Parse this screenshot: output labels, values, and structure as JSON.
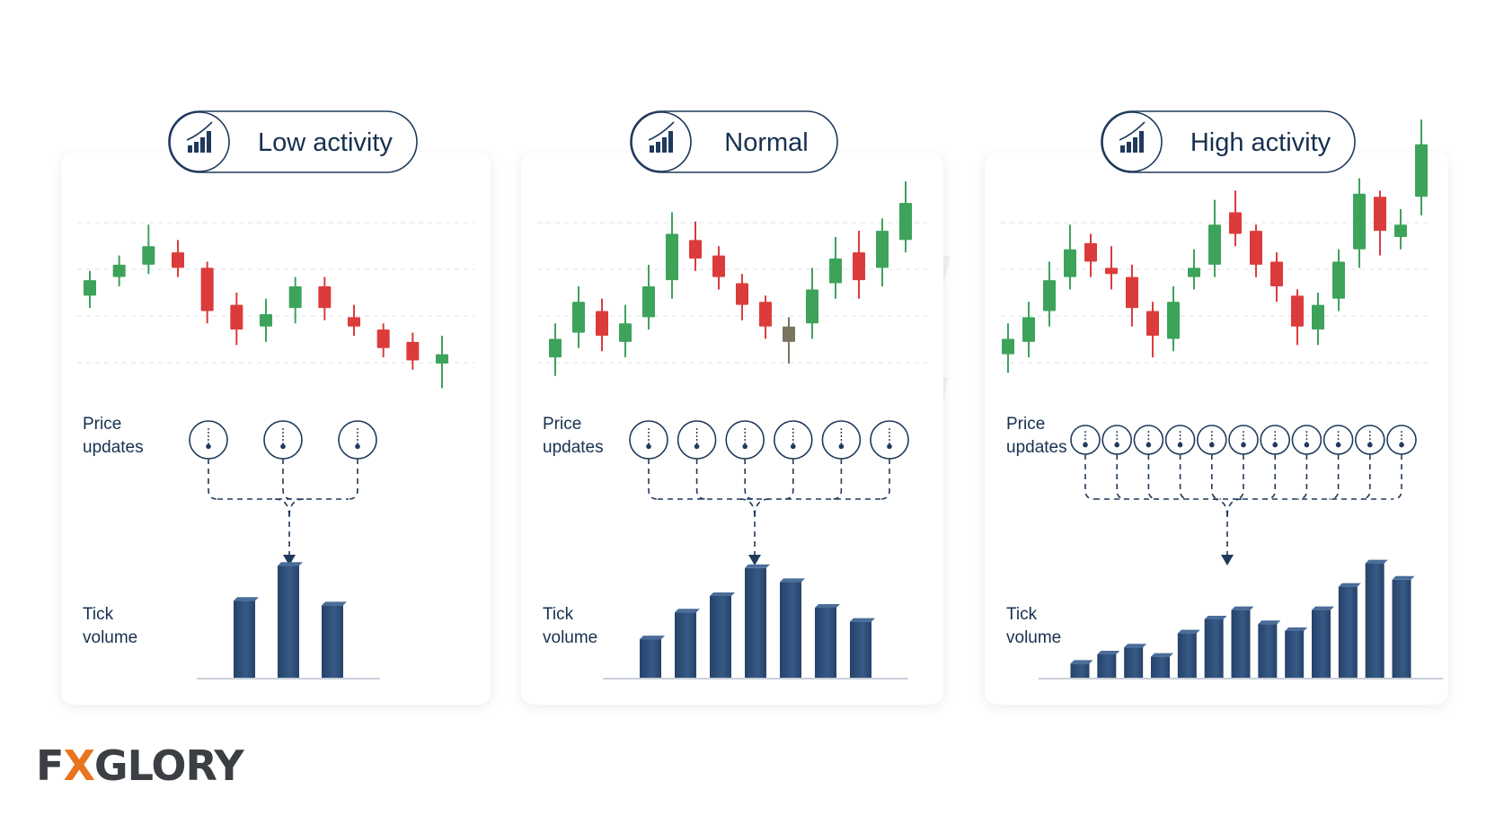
{
  "panels": [
    {
      "title": "Low activity",
      "icon": "bar-chart-icon",
      "price_label": [
        "Price",
        "updates"
      ],
      "volume_label": [
        "Tick",
        "volume"
      ],
      "price_updates": 3,
      "candles": [
        {
          "o": 0.44,
          "c": 0.54,
          "h": 0.6,
          "l": 0.36
        },
        {
          "o": 0.56,
          "c": 0.64,
          "h": 0.7,
          "l": 0.5
        },
        {
          "o": 0.64,
          "c": 0.76,
          "h": 0.9,
          "l": 0.58
        },
        {
          "o": 0.72,
          "c": 0.62,
          "h": 0.8,
          "l": 0.56
        },
        {
          "o": 0.62,
          "c": 0.34,
          "h": 0.66,
          "l": 0.26
        },
        {
          "o": 0.38,
          "c": 0.22,
          "h": 0.46,
          "l": 0.12
        },
        {
          "o": 0.24,
          "c": 0.32,
          "h": 0.42,
          "l": 0.14
        },
        {
          "o": 0.36,
          "c": 0.5,
          "h": 0.56,
          "l": 0.26
        },
        {
          "o": 0.5,
          "c": 0.36,
          "h": 0.56,
          "l": 0.28
        },
        {
          "o": 0.3,
          "c": 0.24,
          "h": 0.38,
          "l": 0.18
        },
        {
          "o": 0.22,
          "c": 0.1,
          "h": 0.26,
          "l": 0.04
        },
        {
          "o": 0.14,
          "c": 0.02,
          "h": 0.2,
          "l": -0.04
        },
        {
          "o": 0.0,
          "c": 0.06,
          "h": 0.18,
          "l": -0.16
        }
      ],
      "volume": [
        0.66,
        0.96,
        0.62
      ]
    },
    {
      "title": "Normal",
      "icon": "bar-chart-icon",
      "price_label": [
        "Price",
        "updates"
      ],
      "volume_label": [
        "Tick",
        "volume"
      ],
      "price_updates": 6,
      "candles": [
        {
          "o": 0.04,
          "c": 0.16,
          "h": 0.26,
          "l": -0.08
        },
        {
          "o": 0.2,
          "c": 0.4,
          "h": 0.5,
          "l": 0.1
        },
        {
          "o": 0.34,
          "c": 0.18,
          "h": 0.42,
          "l": 0.08
        },
        {
          "o": 0.14,
          "c": 0.26,
          "h": 0.38,
          "l": 0.04
        },
        {
          "o": 0.3,
          "c": 0.5,
          "h": 0.64,
          "l": 0.22
        },
        {
          "o": 0.54,
          "c": 0.84,
          "h": 0.98,
          "l": 0.42
        },
        {
          "o": 0.8,
          "c": 0.68,
          "h": 0.92,
          "l": 0.6
        },
        {
          "o": 0.7,
          "c": 0.56,
          "h": 0.76,
          "l": 0.48
        },
        {
          "o": 0.52,
          "c": 0.38,
          "h": 0.58,
          "l": 0.28
        },
        {
          "o": 0.4,
          "c": 0.24,
          "h": 0.44,
          "l": 0.16
        },
        {
          "o": 0.14,
          "c": 0.24,
          "h": 0.3,
          "l": 0.0,
          "neutral": true
        },
        {
          "o": 0.26,
          "c": 0.48,
          "h": 0.62,
          "l": 0.16
        },
        {
          "o": 0.52,
          "c": 0.68,
          "h": 0.82,
          "l": 0.42
        },
        {
          "o": 0.72,
          "c": 0.54,
          "h": 0.86,
          "l": 0.42
        },
        {
          "o": 0.62,
          "c": 0.86,
          "h": 0.94,
          "l": 0.5
        },
        {
          "o": 0.8,
          "c": 1.04,
          "h": 1.18,
          "l": 0.72
        }
      ],
      "volume": [
        0.33,
        0.56,
        0.7,
        0.94,
        0.82,
        0.6,
        0.48
      ]
    },
    {
      "title": "High activity",
      "icon": "bar-chart-icon",
      "price_label": [
        "Price",
        "updates"
      ],
      "volume_label": [
        "Tick",
        "volume"
      ],
      "price_updates": 11,
      "candles": [
        {
          "o": 0.06,
          "c": 0.16,
          "h": 0.26,
          "l": -0.06
        },
        {
          "o": 0.14,
          "c": 0.3,
          "h": 0.4,
          "l": 0.04
        },
        {
          "o": 0.34,
          "c": 0.54,
          "h": 0.66,
          "l": 0.24
        },
        {
          "o": 0.56,
          "c": 0.74,
          "h": 0.9,
          "l": 0.48
        },
        {
          "o": 0.78,
          "c": 0.66,
          "h": 0.84,
          "l": 0.56
        },
        {
          "o": 0.62,
          "c": 0.58,
          "h": 0.76,
          "l": 0.48
        },
        {
          "o": 0.56,
          "c": 0.36,
          "h": 0.64,
          "l": 0.24
        },
        {
          "o": 0.34,
          "c": 0.18,
          "h": 0.4,
          "l": 0.04
        },
        {
          "o": 0.16,
          "c": 0.4,
          "h": 0.5,
          "l": 0.08
        },
        {
          "o": 0.56,
          "c": 0.62,
          "h": 0.74,
          "l": 0.48
        },
        {
          "o": 0.64,
          "c": 0.9,
          "h": 1.06,
          "l": 0.56
        },
        {
          "o": 0.98,
          "c": 0.84,
          "h": 1.12,
          "l": 0.76
        },
        {
          "o": 0.86,
          "c": 0.64,
          "h": 0.9,
          "l": 0.56
        },
        {
          "o": 0.66,
          "c": 0.5,
          "h": 0.72,
          "l": 0.4
        },
        {
          "o": 0.44,
          "c": 0.24,
          "h": 0.48,
          "l": 0.12
        },
        {
          "o": 0.22,
          "c": 0.38,
          "h": 0.46,
          "l": 0.12
        },
        {
          "o": 0.42,
          "c": 0.66,
          "h": 0.74,
          "l": 0.34
        },
        {
          "o": 0.74,
          "c": 1.1,
          "h": 1.2,
          "l": 0.62
        },
        {
          "o": 1.08,
          "c": 0.86,
          "h": 1.12,
          "l": 0.7
        },
        {
          "o": 0.82,
          "c": 0.9,
          "h": 1.0,
          "l": 0.74
        },
        {
          "o": 1.08,
          "c": 1.42,
          "h": 1.58,
          "l": 0.96
        }
      ],
      "volume": [
        0.12,
        0.2,
        0.26,
        0.18,
        0.38,
        0.5,
        0.58,
        0.46,
        0.4,
        0.58,
        0.78,
        0.98,
        0.84
      ]
    }
  ],
  "brand": {
    "part1": "F",
    "part2": "X",
    "part3": "GLORY"
  },
  "colors": {
    "up": "#3da35a",
    "down": "#dc3b3b",
    "neutral": "#7a7560",
    "navy": "#1f3a5c",
    "bar": "#2e4b72"
  }
}
